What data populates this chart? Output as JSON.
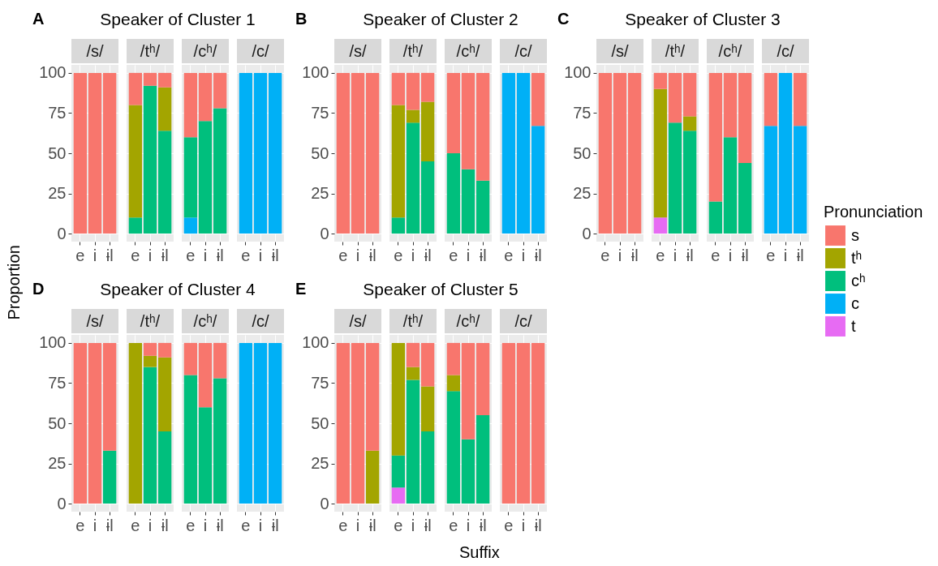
{
  "chart_data": [
    {
      "type": "bar",
      "title": "Speaker of Cluster 1",
      "ylabel": "Proportion",
      "annotations": [
        "A",
        "/s/",
        "/tʰ/",
        "/cʰ/",
        "/c/"
      ],
      "stacked": true,
      "grid": true,
      "categories": [
        "e",
        "i",
        "ɨl",
        "e",
        "i",
        "ɨl",
        "e",
        "i",
        "ɨl",
        "e",
        "i",
        "ɨl"
      ],
      "ylim": [
        -5,
        105
      ],
      "yticks": [
        0,
        25,
        50,
        75,
        100
      ],
      "series": [
        {
          "color": "#e76bf3",
          "values": [
            null,
            null,
            null,
            null,
            null,
            null,
            null,
            null,
            null,
            null,
            null,
            null
          ]
        },
        {
          "color": "#00b0f6",
          "values": [
            null,
            null,
            null,
            null,
            null,
            null,
            10,
            null,
            null,
            100,
            100,
            100
          ]
        },
        {
          "color": "#00bf7d",
          "values": [
            null,
            null,
            null,
            10,
            92,
            64,
            50,
            70,
            78,
            null,
            null,
            null
          ]
        },
        {
          "color": "#a3a500",
          "values": [
            null,
            null,
            null,
            70,
            null,
            27,
            null,
            null,
            null,
            null,
            null,
            null
          ]
        },
        {
          "color": "#f8766d",
          "values": [
            100,
            100,
            100,
            20,
            8,
            9,
            40,
            30,
            22,
            null,
            null,
            null
          ]
        }
      ]
    },
    {
      "type": "bar",
      "title": "Speaker of Cluster 2",
      "annotations": [
        "B",
        "/s/",
        "/tʰ/",
        "/cʰ/",
        "/c/"
      ],
      "stacked": true,
      "grid": true,
      "categories": [
        "e",
        "i",
        "ɨl",
        "e",
        "i",
        "ɨl",
        "e",
        "i",
        "ɨl",
        "e",
        "i",
        "ɨl"
      ],
      "ylim": [
        -5,
        105
      ],
      "yticks": [
        0,
        25,
        50,
        75,
        100
      ],
      "series": [
        {
          "color": "#e76bf3",
          "values": [
            null,
            null,
            null,
            null,
            null,
            null,
            null,
            null,
            null,
            null,
            null,
            null
          ]
        },
        {
          "color": "#00b0f6",
          "values": [
            null,
            null,
            null,
            null,
            null,
            null,
            null,
            null,
            null,
            100,
            100,
            67
          ]
        },
        {
          "color": "#00bf7d",
          "values": [
            null,
            null,
            null,
            10,
            69,
            45,
            50,
            40,
            33,
            null,
            null,
            null
          ]
        },
        {
          "color": "#a3a500",
          "values": [
            null,
            null,
            null,
            70,
            8,
            37,
            null,
            null,
            null,
            null,
            null,
            null
          ]
        },
        {
          "color": "#f8766d",
          "values": [
            100,
            100,
            100,
            20,
            23,
            18,
            50,
            60,
            67,
            null,
            null,
            33
          ]
        }
      ]
    },
    {
      "type": "bar",
      "title": "Speaker of Cluster 3",
      "annotations": [
        "C",
        "/s/",
        "/tʰ/",
        "/cʰ/",
        "/c/"
      ],
      "stacked": true,
      "grid": true,
      "legend": "right",
      "legend_title": "Pronunciation",
      "categories": [
        "e",
        "i",
        "ɨl",
        "e",
        "i",
        "ɨl",
        "e",
        "i",
        "ɨl",
        "e",
        "i",
        "ɨl"
      ],
      "ylim": [
        -5,
        105
      ],
      "yticks": [
        0,
        25,
        50,
        75,
        100
      ],
      "series": [
        {
          "name": "t",
          "color": "#e76bf3",
          "values": [
            null,
            null,
            null,
            10,
            null,
            null,
            null,
            null,
            null,
            null,
            null,
            null
          ]
        },
        {
          "name": "c",
          "color": "#00b0f6",
          "values": [
            null,
            null,
            null,
            null,
            null,
            null,
            null,
            null,
            null,
            67,
            100,
            67
          ]
        },
        {
          "name": "cʰ",
          "color": "#00bf7d",
          "values": [
            null,
            null,
            null,
            null,
            69,
            64,
            20,
            60,
            44,
            null,
            null,
            null
          ]
        },
        {
          "name": "tʰ",
          "color": "#a3a500",
          "values": [
            null,
            null,
            null,
            80,
            null,
            9,
            null,
            null,
            null,
            null,
            null,
            null
          ]
        },
        {
          "name": "s",
          "color": "#f8766d",
          "values": [
            100,
            100,
            100,
            10,
            31,
            27,
            80,
            40,
            56,
            33,
            null,
            33
          ]
        }
      ]
    },
    {
      "type": "bar",
      "title": "Speaker of Cluster 4",
      "annotations": [
        "D",
        "/s/",
        "/tʰ/",
        "/cʰ/",
        "/c/"
      ],
      "stacked": true,
      "grid": true,
      "categories": [
        "e",
        "i",
        "ɨl",
        "e",
        "i",
        "ɨl",
        "e",
        "i",
        "ɨl",
        "e",
        "i",
        "ɨl"
      ],
      "ylim": [
        -5,
        105
      ],
      "yticks": [
        0,
        25,
        50,
        75,
        100
      ],
      "series": [
        {
          "color": "#e76bf3",
          "values": [
            null,
            null,
            null,
            null,
            null,
            null,
            null,
            null,
            null,
            null,
            null,
            null
          ]
        },
        {
          "color": "#00b0f6",
          "values": [
            null,
            null,
            null,
            null,
            null,
            null,
            null,
            null,
            null,
            100,
            100,
            100
          ]
        },
        {
          "color": "#00bf7d",
          "values": [
            null,
            null,
            33,
            null,
            85,
            45,
            80,
            60,
            78,
            null,
            null,
            null
          ]
        },
        {
          "color": "#a3a500",
          "values": [
            null,
            null,
            null,
            100,
            7,
            46,
            null,
            null,
            null,
            null,
            null,
            null
          ]
        },
        {
          "color": "#f8766d",
          "values": [
            100,
            100,
            67,
            null,
            8,
            9,
            20,
            40,
            22,
            null,
            null,
            null
          ]
        }
      ]
    },
    {
      "type": "bar",
      "title": "Speaker of Cluster 5",
      "xlabel": "Suffix",
      "annotations": [
        "E",
        "/s/",
        "/tʰ/",
        "/cʰ/",
        "/c/"
      ],
      "stacked": true,
      "grid": true,
      "categories": [
        "e",
        "i",
        "ɨl",
        "e",
        "i",
        "ɨl",
        "e",
        "i",
        "ɨl",
        "e",
        "i",
        "ɨl"
      ],
      "ylim": [
        -5,
        105
      ],
      "yticks": [
        0,
        25,
        50,
        75,
        100
      ],
      "series": [
        {
          "color": "#e76bf3",
          "values": [
            null,
            null,
            null,
            10,
            null,
            null,
            null,
            null,
            null,
            null,
            null,
            null
          ]
        },
        {
          "color": "#00b0f6",
          "values": [
            null,
            null,
            null,
            null,
            null,
            null,
            null,
            null,
            null,
            null,
            null,
            null
          ]
        },
        {
          "color": "#00bf7d",
          "values": [
            null,
            null,
            null,
            20,
            77,
            45,
            70,
            40,
            55,
            null,
            null,
            null
          ]
        },
        {
          "color": "#a3a500",
          "values": [
            null,
            null,
            33,
            70,
            8,
            28,
            10,
            null,
            null,
            null,
            null,
            null
          ]
        },
        {
          "color": "#f8766d",
          "values": [
            100,
            100,
            67,
            null,
            15,
            27,
            20,
            60,
            45,
            100,
            100,
            100
          ]
        }
      ]
    }
  ]
}
